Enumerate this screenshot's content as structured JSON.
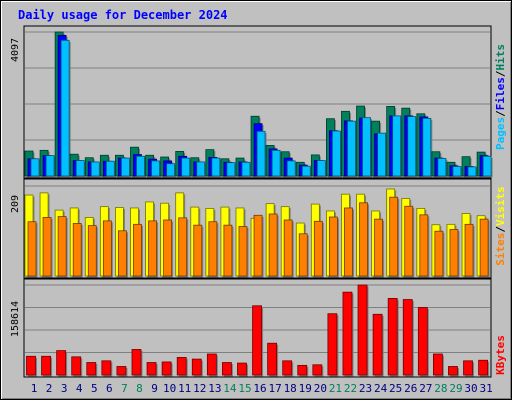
{
  "title": "Daily usage for December 2024",
  "colors": {
    "hits": "#00805c",
    "files": "#0000ff",
    "pages": "#00c0ff",
    "visits": "#ffff00",
    "sites": "#ff8000",
    "kbytes": "#ff0000",
    "weekend": "#00805c",
    "weekday": "#000080",
    "panel_bg": "#c0c0c0"
  },
  "chart_data": [
    {
      "type": "bar",
      "name": "hits-files-pages",
      "ymax_label": "4097",
      "legend": [
        "Pages",
        "/",
        "Files",
        "/",
        "Hits"
      ],
      "ylim": [
        0,
        4097
      ],
      "categories": [
        "1",
        "2",
        "3",
        "4",
        "5",
        "6",
        "7",
        "8",
        "9",
        "10",
        "11",
        "12",
        "13",
        "14",
        "15",
        "16",
        "17",
        "18",
        "19",
        "20",
        "21",
        "22",
        "23",
        "24",
        "25",
        "26",
        "27",
        "28",
        "29",
        "30",
        "31"
      ],
      "series": [
        {
          "name": "Hits",
          "values": [
            710,
            730,
            4097,
            620,
            520,
            590,
            590,
            820,
            590,
            540,
            700,
            520,
            750,
            490,
            510,
            1700,
            870,
            690,
            390,
            600,
            1630,
            1840,
            1990,
            1560,
            1980,
            1930,
            1770,
            690,
            390,
            550,
            680
          ]
        },
        {
          "name": "Files",
          "values": [
            490,
            580,
            4000,
            440,
            400,
            420,
            510,
            610,
            480,
            430,
            560,
            400,
            530,
            390,
            400,
            1490,
            770,
            510,
            310,
            440,
            1290,
            1570,
            1650,
            1200,
            1710,
            1710,
            1680,
            510,
            290,
            270,
            580
          ]
        },
        {
          "name": "Pages",
          "values": [
            490,
            580,
            3860,
            440,
            400,
            420,
            510,
            560,
            430,
            350,
            510,
            400,
            510,
            380,
            390,
            1270,
            730,
            430,
            280,
            440,
            1280,
            1560,
            1660,
            1220,
            1710,
            1690,
            1640,
            500,
            270,
            260,
            560
          ]
        }
      ]
    },
    {
      "type": "bar",
      "name": "visits-sites",
      "ymax_label": "209",
      "legend": [
        "Sites",
        "/",
        "Visits"
      ],
      "ylim": [
        0,
        209
      ],
      "categories": [
        "1",
        "2",
        "3",
        "4",
        "5",
        "6",
        "7",
        "8",
        "9",
        "10",
        "11",
        "12",
        "13",
        "14",
        "15",
        "16",
        "17",
        "18",
        "19",
        "20",
        "21",
        "22",
        "23",
        "24",
        "25",
        "26",
        "27",
        "28",
        "29",
        "30",
        "31"
      ],
      "series": [
        {
          "name": "Visits",
          "values": [
            188,
            193,
            153,
            158,
            136,
            161,
            159,
            158,
            172,
            169,
            193,
            160,
            157,
            160,
            158,
            134,
            168,
            161,
            123,
            167,
            151,
            190,
            190,
            151,
            202,
            180,
            157,
            119,
            120,
            145,
            140
          ]
        },
        {
          "name": "Sites",
          "values": [
            126,
            136,
            138,
            122,
            117,
            128,
            105,
            120,
            128,
            130,
            135,
            118,
            126,
            118,
            115,
            141,
            144,
            130,
            98,
            127,
            137,
            158,
            170,
            132,
            183,
            162,
            142,
            104,
            108,
            120,
            132
          ]
        }
      ]
    },
    {
      "type": "bar",
      "name": "kbytes",
      "ymax_label": "158614",
      "legend": [
        "KBytes"
      ],
      "ylim": [
        0,
        158614
      ],
      "categories": [
        "1",
        "2",
        "3",
        "4",
        "5",
        "6",
        "7",
        "8",
        "9",
        "10",
        "11",
        "12",
        "13",
        "14",
        "15",
        "16",
        "17",
        "18",
        "19",
        "20",
        "21",
        "22",
        "23",
        "24",
        "25",
        "26",
        "27",
        "28",
        "29",
        "30",
        "31"
      ],
      "series": [
        {
          "name": "KBytes",
          "values": [
            33000,
            33000,
            43000,
            32000,
            22000,
            25000,
            15000,
            45000,
            22000,
            23000,
            31000,
            28000,
            37000,
            22000,
            21000,
            122000,
            56000,
            25000,
            17000,
            18000,
            108000,
            146000,
            158614,
            107000,
            135000,
            133000,
            119000,
            37000,
            15000,
            25000,
            26000
          ]
        }
      ]
    }
  ]
}
